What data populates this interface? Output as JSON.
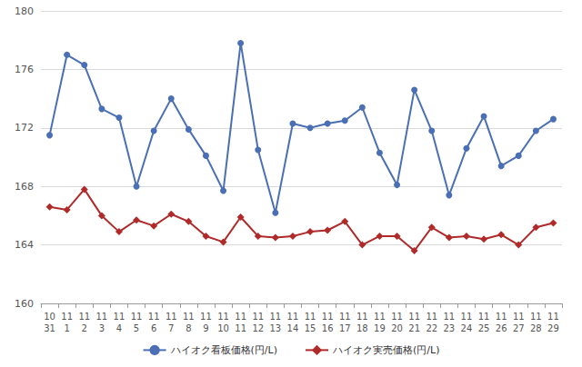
{
  "chart_data": {
    "type": "line",
    "categories": [
      "10\n31",
      "11\n1",
      "11\n2",
      "11\n3",
      "11\n4",
      "11\n5",
      "11\n6",
      "11\n7",
      "11\n8",
      "11\n9",
      "11\n10",
      "11\n11",
      "11\n12",
      "11\n13",
      "11\n14",
      "11\n15",
      "11\n16",
      "11\n17",
      "11\n18",
      "11\n19",
      "11\n20",
      "11\n21",
      "11\n22",
      "11\n23",
      "11\n24",
      "11\n25",
      "11\n26",
      "11\n27",
      "11\n28",
      "11\n29"
    ],
    "series": [
      {
        "name": "ハイオク看板価格(円/L)",
        "color": "#4a6fb5",
        "marker": "circle",
        "line_style": "solid",
        "values": [
          171.5,
          177.0,
          176.3,
          173.3,
          172.7,
          168.0,
          171.8,
          174.0,
          171.9,
          170.1,
          167.7,
          177.8,
          170.5,
          166.2,
          172.3,
          172.0,
          172.3,
          172.5,
          173.4,
          170.3,
          168.1,
          174.6,
          171.8,
          167.4,
          170.6,
          172.8,
          169.4,
          170.1,
          171.8,
          172.6
        ]
      },
      {
        "name": "ハイオク実売価格(円/L)",
        "color": "#b02a2a",
        "marker": "diamond",
        "line_style": "solid",
        "values": [
          166.6,
          166.4,
          167.8,
          166.0,
          164.9,
          165.7,
          165.3,
          166.1,
          165.6,
          164.6,
          164.2,
          165.9,
          164.6,
          164.5,
          164.6,
          164.9,
          165.0,
          165.6,
          164.0,
          164.6,
          164.6,
          163.6,
          165.2,
          164.5,
          164.6,
          164.4,
          164.7,
          164.0,
          165.2,
          165.5
        ]
      }
    ],
    "ylim": [
      160,
      180
    ],
    "yticks": [
      160,
      164,
      168,
      172,
      176,
      180
    ],
    "grid": true,
    "legend": "bottom"
  }
}
